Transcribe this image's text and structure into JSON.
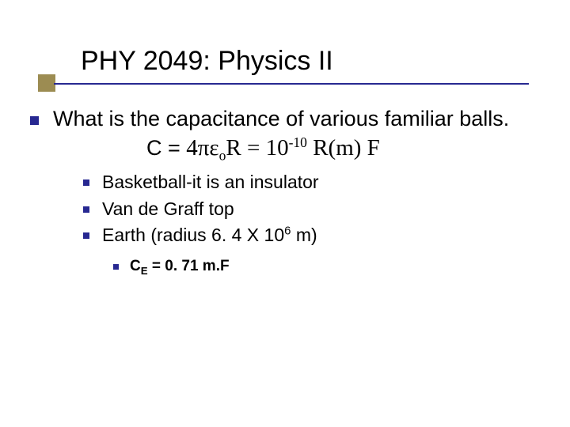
{
  "colors": {
    "accent_square": "#9c8c52",
    "underline": "#272891",
    "bullet": "#272891",
    "background": "#ffffff",
    "text": "#000000"
  },
  "typography": {
    "title_fontsize": 34,
    "lvl1_fontsize": 27,
    "lvl2_fontsize": 23,
    "lvl3_fontsize": 19,
    "body_font": "Verdana",
    "formula_font": "Times New Roman"
  },
  "title": "PHY 2049: Physics II",
  "lvl1": {
    "text": "What is the capacitance of various familiar balls.",
    "formula": {
      "prefix": "C = ",
      "pi_epsilon": "4πε",
      "sub_o": "o",
      "r_eq": "R = 10",
      "sup_neg10": "-10",
      "suffix": " R(m) F"
    }
  },
  "lvl2": [
    {
      "text": "Basketball-it is an insulator"
    },
    {
      "text": "Van de Graff top"
    },
    {
      "text_pre": "Earth (radius 6. 4 X 10",
      "sup": "6",
      "text_post": " m)"
    }
  ],
  "lvl3": {
    "pre": "C",
    "sub": "E",
    "post": " = 0. 71 m.F"
  }
}
